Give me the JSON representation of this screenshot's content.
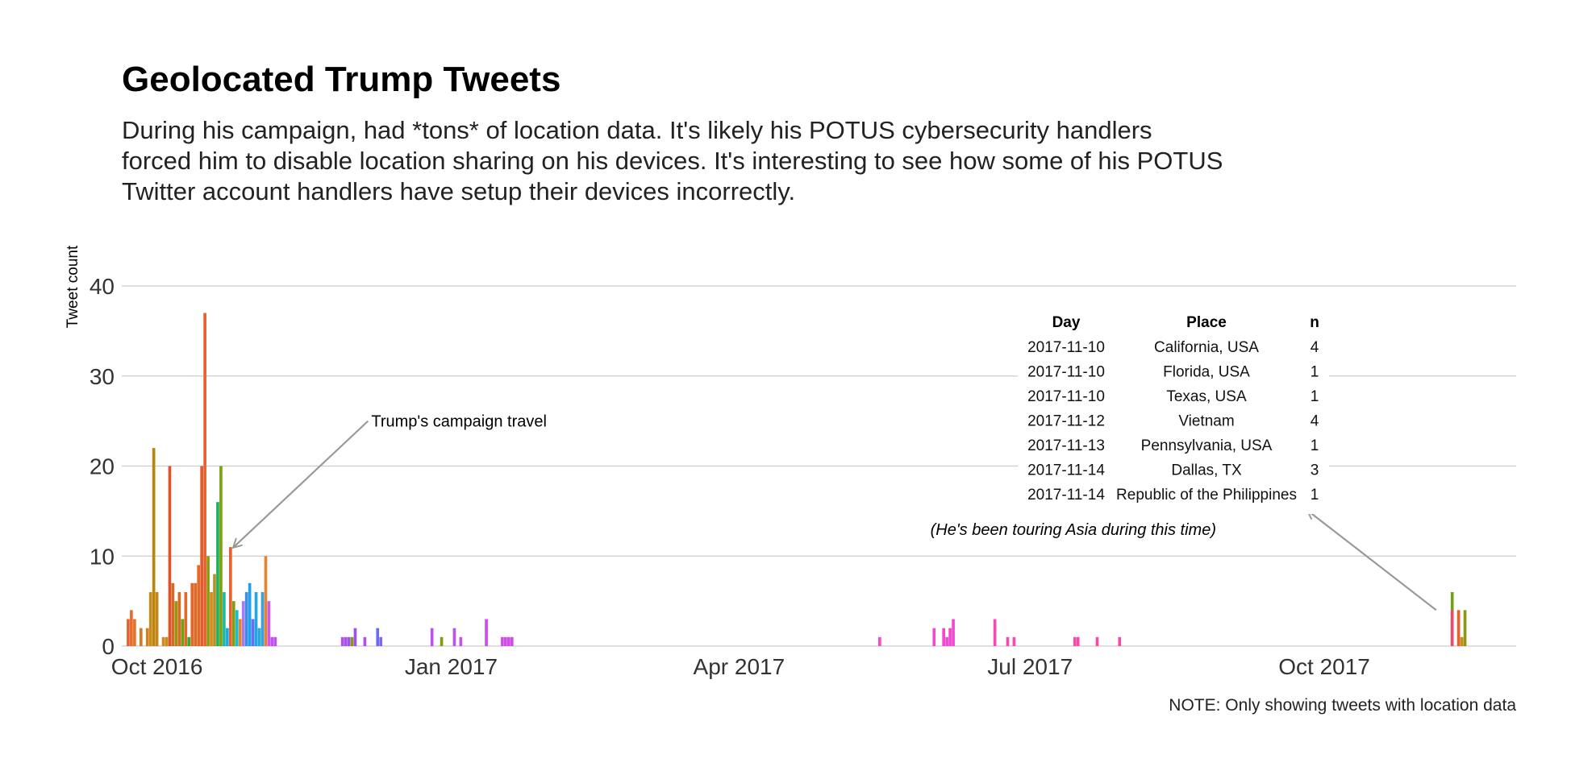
{
  "chart_data": {
    "type": "bar",
    "title": "Geolocated Trump Tweets",
    "subtitle_lines": [
      "During his campaign, had *tons* of location data. It's likely his POTUS cybersecurity handlers",
      "forced him to disable location sharing on his devices. It's interesting to see how some of his POTUS",
      "Twitter account handlers have setup their devices incorrectly."
    ],
    "ylabel": "Tweet count",
    "xlabel": "",
    "ylim": [
      0,
      40
    ],
    "yticks": [
      0,
      10,
      20,
      30,
      40
    ],
    "xlim": [
      "2016-09-20",
      "2017-11-30"
    ],
    "xticks": [
      {
        "date": "2016-10-01",
        "label": "Oct 2016"
      },
      {
        "date": "2017-01-01",
        "label": "Jan 2017"
      },
      {
        "date": "2017-04-01",
        "label": "Apr 2017"
      },
      {
        "date": "2017-07-01",
        "label": "Jul 2017"
      },
      {
        "date": "2017-10-01",
        "label": "Oct 2017"
      }
    ],
    "grid": true,
    "legend": "none",
    "bars": [
      {
        "date": "2016-09-22",
        "value": 3,
        "color": "#E8602C"
      },
      {
        "date": "2016-09-23",
        "value": 4,
        "color": "#E66A2C"
      },
      {
        "date": "2016-09-24",
        "value": 3,
        "color": "#E4732A"
      },
      {
        "date": "2016-09-26",
        "value": 2,
        "color": "#D47B23"
      },
      {
        "date": "2016-09-28",
        "value": 2,
        "color": "#D4801E"
      },
      {
        "date": "2016-09-29",
        "value": 6,
        "color": "#C98A1C"
      },
      {
        "date": "2016-09-30",
        "value": 22,
        "color": "#B8860B"
      },
      {
        "date": "2016-10-01",
        "value": 6,
        "color": "#C8841A"
      },
      {
        "date": "2016-10-03",
        "value": 1,
        "color": "#D08A20"
      },
      {
        "date": "2016-10-04",
        "value": 1,
        "color": "#C88C1A"
      },
      {
        "date": "2016-10-05",
        "value": 20,
        "color": "#E0522A"
      },
      {
        "date": "2016-10-06",
        "value": 7,
        "color": "#D46A2A"
      },
      {
        "date": "2016-10-07",
        "value": 5,
        "color": "#9A9410"
      },
      {
        "date": "2016-10-08",
        "value": 6,
        "color": "#D86A28"
      },
      {
        "date": "2016-10-09",
        "value": 3,
        "color": "#6EA214"
      },
      {
        "date": "2016-10-10",
        "value": 6,
        "color": "#E06A2A"
      },
      {
        "date": "2016-10-11",
        "value": 1,
        "color": "#2EB02E"
      },
      {
        "date": "2016-10-12",
        "value": 7,
        "color": "#E3662C"
      },
      {
        "date": "2016-10-13",
        "value": 7,
        "color": "#DA6A2A"
      },
      {
        "date": "2016-10-14",
        "value": 9,
        "color": "#E06A2A"
      },
      {
        "date": "2016-10-15",
        "value": 20,
        "color": "#E25A2A"
      },
      {
        "date": "2016-10-16",
        "value": 37,
        "color": "#E8602C"
      },
      {
        "date": "2016-10-17",
        "value": 10,
        "color": "#8A9A10"
      },
      {
        "date": "2016-10-18",
        "value": 6,
        "color": "#D48A1C"
      },
      {
        "date": "2016-10-19",
        "value": 8,
        "color": "#B8902A"
      },
      {
        "date": "2016-10-20",
        "value": 16,
        "color": "#1EB05A"
      },
      {
        "date": "2016-10-21",
        "value": 20,
        "color": "#7AA014"
      },
      {
        "date": "2016-10-22",
        "value": 6,
        "color": "#1EB8A0"
      },
      {
        "date": "2016-10-23",
        "value": 2,
        "color": "#20A8E0"
      },
      {
        "date": "2016-10-24",
        "value": 11,
        "color": "#E8602C"
      },
      {
        "date": "2016-10-25",
        "value": 5,
        "color": "#7AA014"
      },
      {
        "date": "2016-10-26",
        "value": 4,
        "color": "#1EB8D0"
      },
      {
        "date": "2016-10-27",
        "value": 3,
        "color": "#E8822C"
      },
      {
        "date": "2016-10-28",
        "value": 5,
        "color": "#A57CF0"
      },
      {
        "date": "2016-10-29",
        "value": 6,
        "color": "#3B8EE8"
      },
      {
        "date": "2016-10-30",
        "value": 7,
        "color": "#20A0E8"
      },
      {
        "date": "2016-10-31",
        "value": 3,
        "color": "#6C6CF2"
      },
      {
        "date": "2016-11-01",
        "value": 6,
        "color": "#20A8E0"
      },
      {
        "date": "2016-11-02",
        "value": 2,
        "color": "#2AA8D8"
      },
      {
        "date": "2016-11-03",
        "value": 6,
        "color": "#3AA0E0"
      },
      {
        "date": "2016-11-04",
        "value": 10,
        "color": "#E8822C"
      },
      {
        "date": "2016-11-05",
        "value": 5,
        "color": "#C85AF0"
      },
      {
        "date": "2016-11-06",
        "value": 1,
        "color": "#C050F0"
      },
      {
        "date": "2016-11-07",
        "value": 1,
        "color": "#C050F0"
      },
      {
        "date": "2016-11-28",
        "value": 1,
        "color": "#B050F0"
      },
      {
        "date": "2016-11-29",
        "value": 1,
        "color": "#A850F0"
      },
      {
        "date": "2016-11-30",
        "value": 1,
        "color": "#A050F0"
      },
      {
        "date": "2016-12-01",
        "value": 1,
        "color": "#8A9A10"
      },
      {
        "date": "2016-12-02",
        "value": 2,
        "color": "#A050F0"
      },
      {
        "date": "2016-12-05",
        "value": 1,
        "color": "#B050F0"
      },
      {
        "date": "2016-12-09",
        "value": 2,
        "color": "#6A6AF2"
      },
      {
        "date": "2016-12-10",
        "value": 1,
        "color": "#7A6AF2"
      },
      {
        "date": "2016-12-26",
        "value": 2,
        "color": "#C050F0"
      },
      {
        "date": "2016-12-29",
        "value": 1,
        "color": "#8A9A10"
      },
      {
        "date": "2017-01-02",
        "value": 2,
        "color": "#C050F0"
      },
      {
        "date": "2017-01-04",
        "value": 1,
        "color": "#C850F0"
      },
      {
        "date": "2017-01-12",
        "value": 3,
        "color": "#D048F0"
      },
      {
        "date": "2017-01-17",
        "value": 1,
        "color": "#D048F0"
      },
      {
        "date": "2017-01-18",
        "value": 1,
        "color": "#D048F0"
      },
      {
        "date": "2017-01-19",
        "value": 1,
        "color": "#D048F0"
      },
      {
        "date": "2017-01-20",
        "value": 1,
        "color": "#D048F0"
      },
      {
        "date": "2017-05-15",
        "value": 1,
        "color": "#F048D8"
      },
      {
        "date": "2017-06-01",
        "value": 2,
        "color": "#F048D0"
      },
      {
        "date": "2017-06-04",
        "value": 2,
        "color": "#F048D0"
      },
      {
        "date": "2017-06-05",
        "value": 1,
        "color": "#F048D0"
      },
      {
        "date": "2017-06-06",
        "value": 2,
        "color": "#F048D0"
      },
      {
        "date": "2017-06-07",
        "value": 3,
        "color": "#F048D0"
      },
      {
        "date": "2017-06-20",
        "value": 3,
        "color": "#F848B8"
      },
      {
        "date": "2017-06-24",
        "value": 1,
        "color": "#F848B8"
      },
      {
        "date": "2017-06-26",
        "value": 1,
        "color": "#F848B8"
      },
      {
        "date": "2017-07-15",
        "value": 1,
        "color": "#F848A8"
      },
      {
        "date": "2017-07-16",
        "value": 1,
        "color": "#F848A8"
      },
      {
        "date": "2017-07-22",
        "value": 1,
        "color": "#F848A8"
      },
      {
        "date": "2017-07-29",
        "value": 1,
        "color": "#F848A8"
      },
      {
        "date": "2017-11-10",
        "value": 6,
        "color": "#6EA214"
      },
      {
        "date": "2017-11-10",
        "value": 4,
        "color": "#F0486A"
      },
      {
        "date": "2017-11-12",
        "value": 4,
        "color": "#E8602C"
      },
      {
        "date": "2017-11-13",
        "value": 1,
        "color": "#C88C1A"
      },
      {
        "date": "2017-11-14",
        "value": 4,
        "color": "#8A9A10"
      }
    ],
    "annotations": [
      {
        "text": "Trump's campaign travel",
        "arrow_from": {
          "date": "2016-12-06",
          "value": 25
        },
        "arrow_to": {
          "date": "2016-10-25",
          "value": 11
        }
      },
      {
        "text": "(He's been touring Asia during this time)",
        "arrow_from": {
          "date": "2017-11-05",
          "value": 4
        },
        "arrow_to": {
          "date": "2017-09-26",
          "value": 15
        }
      }
    ],
    "table": {
      "headers": [
        "Day",
        "Place",
        "n"
      ],
      "rows": [
        [
          "2017-11-10",
          "California, USA",
          "4"
        ],
        [
          "2017-11-10",
          "Florida, USA",
          "1"
        ],
        [
          "2017-11-10",
          "Texas, USA",
          "1"
        ],
        [
          "2017-11-12",
          "Vietnam",
          "4"
        ],
        [
          "2017-11-13",
          "Pennsylvania, USA",
          "1"
        ],
        [
          "2017-11-14",
          "Dallas, TX",
          "3"
        ],
        [
          "2017-11-14",
          "Republic of the Philippines",
          "1"
        ]
      ]
    },
    "caption": "NOTE: Only showing tweets with location data"
  }
}
